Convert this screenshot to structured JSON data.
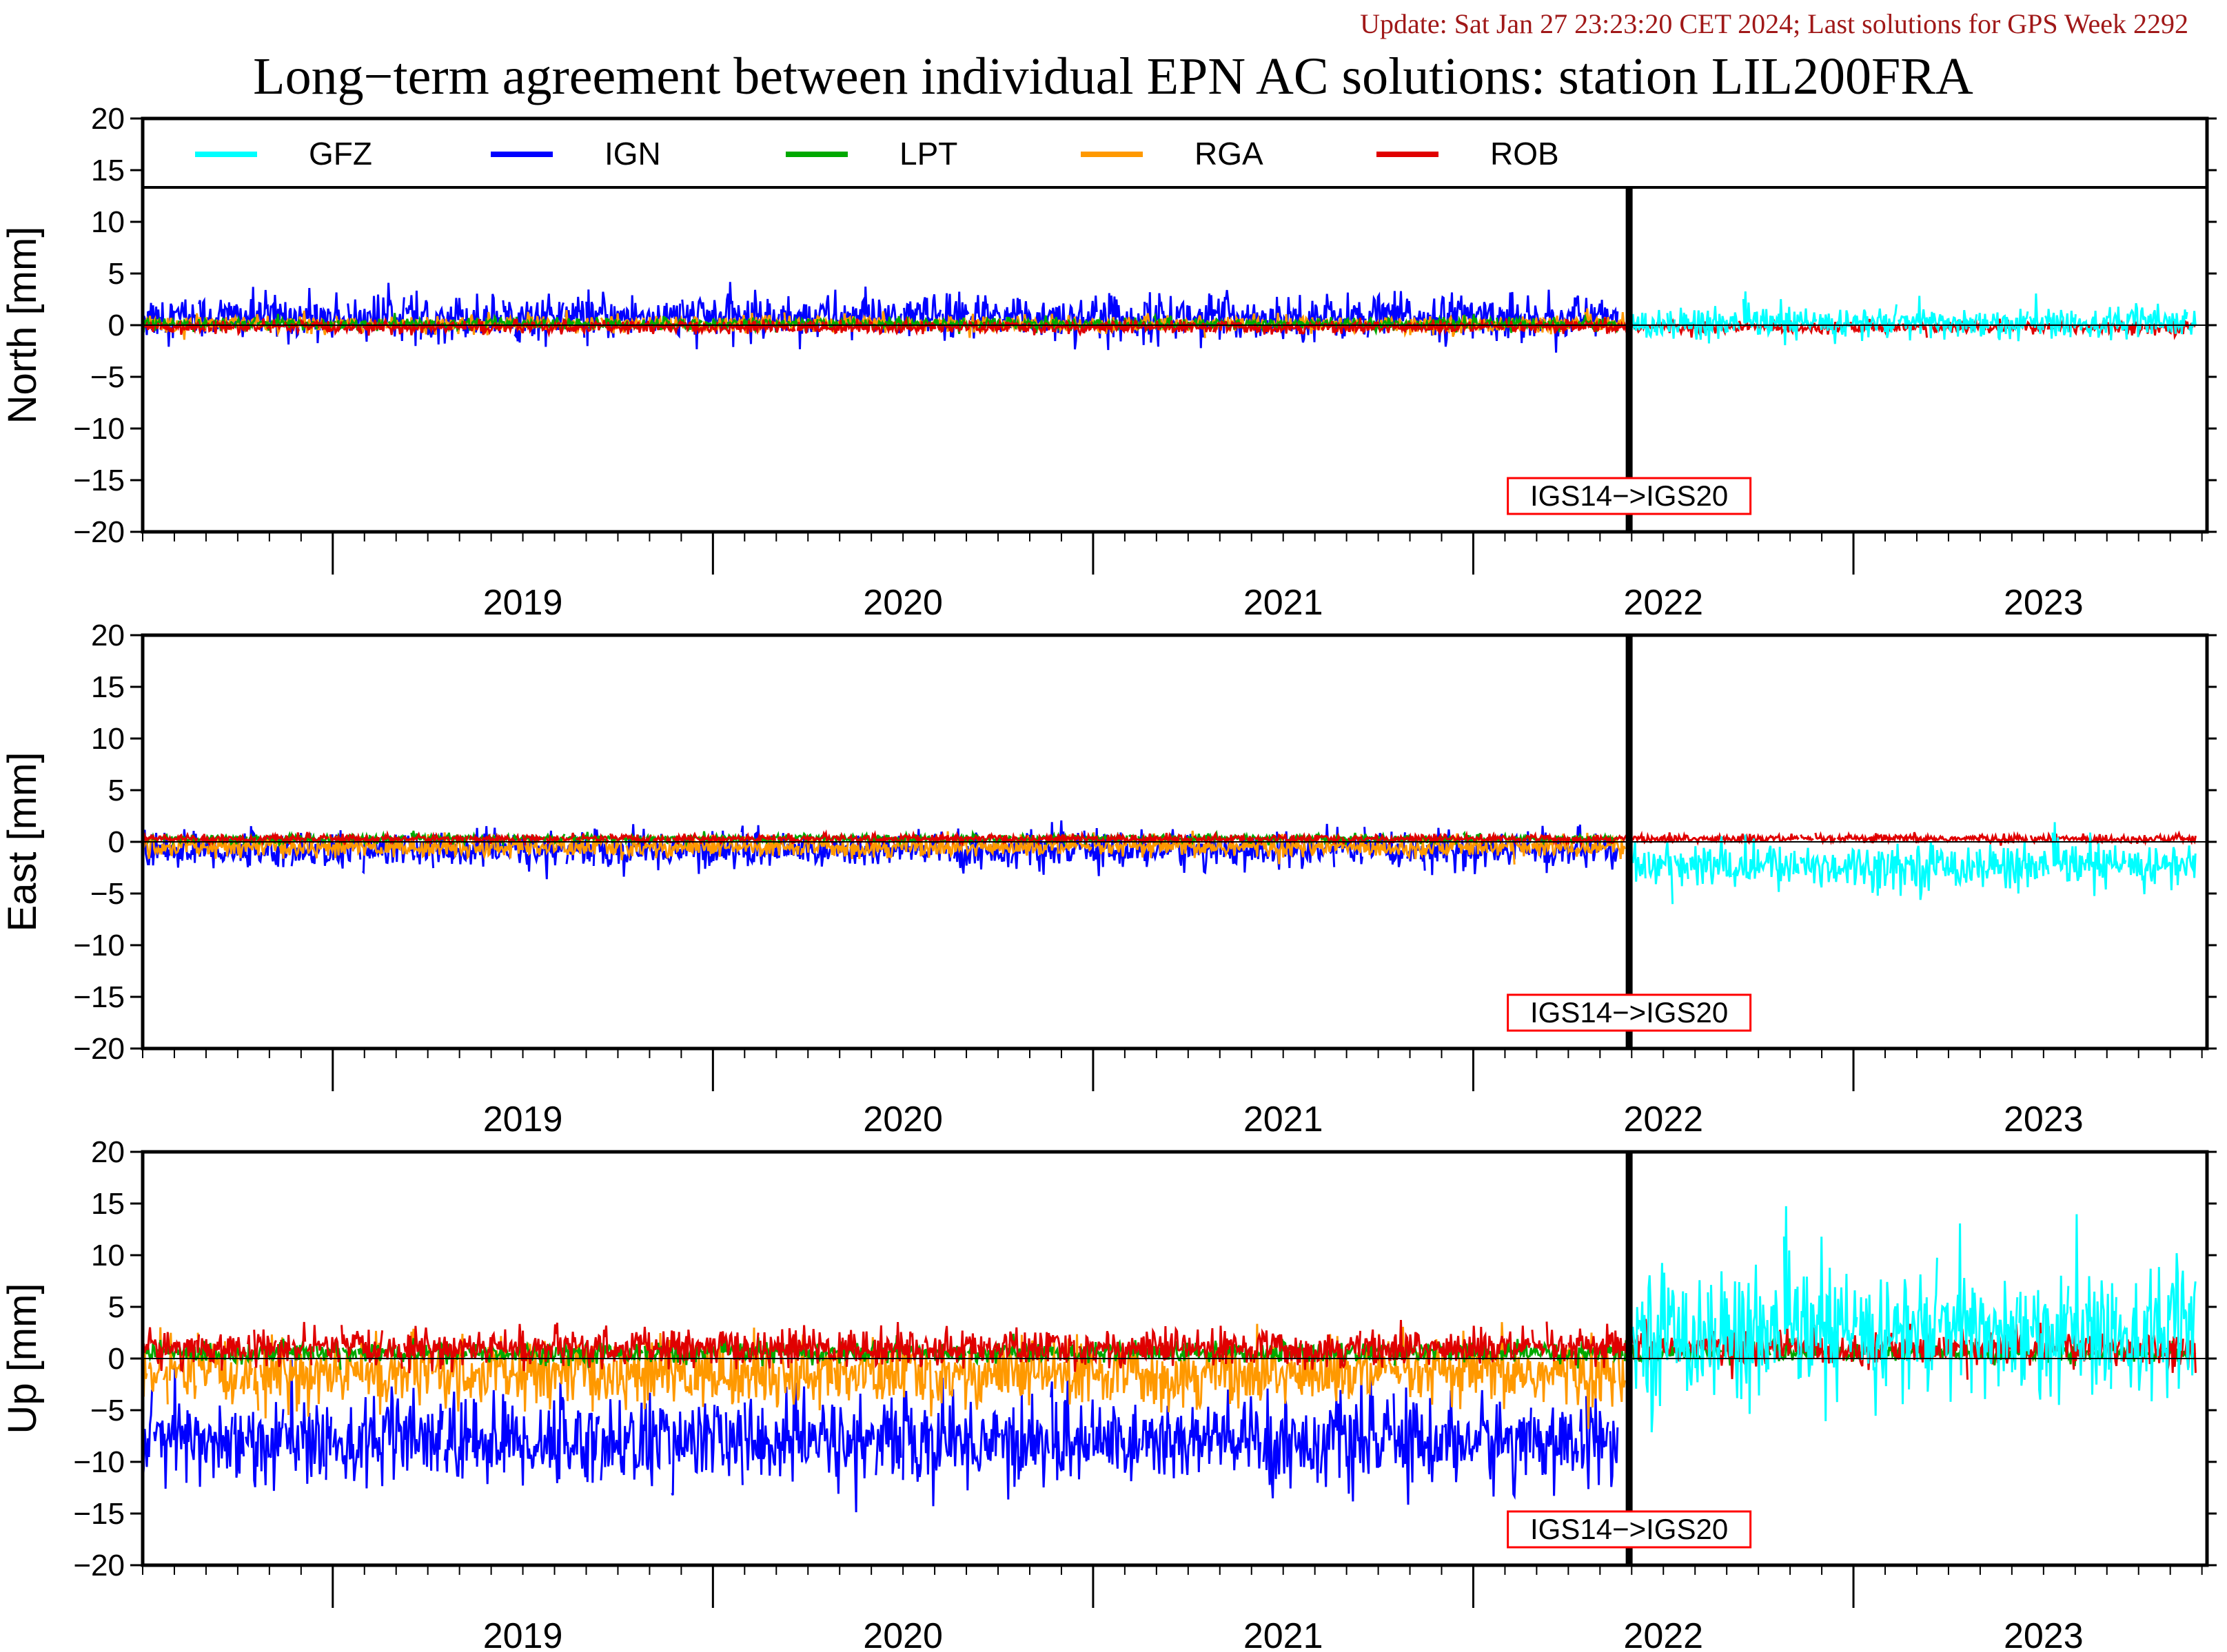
{
  "update_text": "Update: Sat Jan 27 23:23:20 CET 2024; Last solutions for GPS Week 2292",
  "title": "Long−term agreement between individual EPN AC solutions: station LIL200FRA",
  "colors": {
    "GFZ": "#00ffff",
    "IGN": "#0000ff",
    "LPT": "#00a800",
    "RGA": "#ff9900",
    "ROB": "#e00000",
    "update_text": "#a01818",
    "frame_change_box": "#ff0000"
  },
  "legend": [
    "GFZ",
    "IGN",
    "LPT",
    "RGA",
    "ROB"
  ],
  "frame_change_label": "IGS14−>IGS20",
  "chart_data": [
    {
      "type": "line",
      "ylabel": "North [mm]",
      "ylim": [
        -20,
        20
      ],
      "yticks": [
        20,
        15,
        10,
        5,
        0,
        -5,
        -10,
        -15,
        -20
      ],
      "xlim": [
        2018.5,
        2023.93
      ],
      "year_labels": [
        "2019",
        "2020",
        "2021",
        "2022",
        "2023"
      ],
      "frame_change_x": 2022.41,
      "grid": false,
      "legend_placement": "top",
      "series": [
        {
          "name": "GFZ",
          "x_range": [
            2022.42,
            2023.9
          ],
          "mean": 0.2,
          "sd": 0.8
        },
        {
          "name": "IGN",
          "x_range": [
            2018.5,
            2022.38
          ],
          "mean": 0.8,
          "sd": 1.1
        },
        {
          "name": "LPT",
          "x_range": [
            2018.5,
            2022.38
          ],
          "mean": 0.1,
          "sd": 0.3
        },
        {
          "name": "RGA",
          "x_range": [
            2018.5,
            2022.4
          ],
          "mean": 0.1,
          "sd": 0.4
        },
        {
          "name": "ROB",
          "x_range": [
            2018.5,
            2023.9
          ],
          "mean": -0.2,
          "sd": 0.3
        }
      ]
    },
    {
      "type": "line",
      "ylabel": "East [mm]",
      "ylim": [
        -20,
        20
      ],
      "yticks": [
        20,
        15,
        10,
        5,
        0,
        -5,
        -10,
        -15,
        -20
      ],
      "xlim": [
        2018.5,
        2023.93
      ],
      "year_labels": [
        "2019",
        "2020",
        "2021",
        "2022",
        "2023"
      ],
      "frame_change_x": 2022.41,
      "grid": false,
      "series": [
        {
          "name": "GFZ",
          "x_range": [
            2022.42,
            2023.9
          ],
          "mean": -2.3,
          "sd": 1.1
        },
        {
          "name": "IGN",
          "x_range": [
            2018.5,
            2022.38
          ],
          "mean": -0.8,
          "sd": 0.9
        },
        {
          "name": "LPT",
          "x_range": [
            2018.5,
            2022.38
          ],
          "mean": 0.3,
          "sd": 0.2
        },
        {
          "name": "RGA",
          "x_range": [
            2018.5,
            2022.4
          ],
          "mean": -0.5,
          "sd": 0.5
        },
        {
          "name": "ROB",
          "x_range": [
            2018.5,
            2023.9
          ],
          "mean": 0.3,
          "sd": 0.2
        }
      ]
    },
    {
      "type": "line",
      "ylabel": "Up [mm]",
      "ylim": [
        -20,
        20
      ],
      "yticks": [
        20,
        15,
        10,
        5,
        0,
        -5,
        -10,
        -15,
        -20
      ],
      "xlim": [
        2018.5,
        2023.93
      ],
      "year_labels": [
        "2019",
        "2020",
        "2021",
        "2022",
        "2023"
      ],
      "frame_change_x": 2022.41,
      "grid": false,
      "series": [
        {
          "name": "GFZ",
          "x_range": [
            2022.42,
            2023.9
          ],
          "mean": 2.5,
          "sd": 3.2
        },
        {
          "name": "IGN",
          "x_range": [
            2018.5,
            2022.38
          ],
          "mean": -8.0,
          "sd": 2.2
        },
        {
          "name": "LPT",
          "x_range": [
            2018.5,
            2023.9
          ],
          "mean": 0.6,
          "sd": 0.5
        },
        {
          "name": "RGA",
          "x_range": [
            2018.5,
            2022.4
          ],
          "mean": -1.5,
          "sd": 1.6
        },
        {
          "name": "ROB",
          "x_range": [
            2018.5,
            2023.9
          ],
          "mean": 1.0,
          "sd": 0.9
        }
      ]
    }
  ]
}
